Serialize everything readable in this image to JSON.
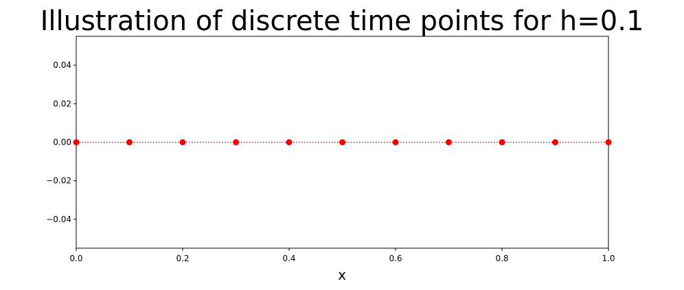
{
  "chart_data": {
    "type": "line",
    "title": "Illustration of discrete time points for h=0.1",
    "xlabel": "x",
    "ylabel": "",
    "xlim": [
      0.0,
      1.0
    ],
    "ylim": [
      -0.055,
      0.055
    ],
    "x_ticks": [
      0.0,
      0.2,
      0.4,
      0.6,
      0.8,
      1.0
    ],
    "x_tick_labels": [
      "0.0",
      "0.2",
      "0.4",
      "0.6",
      "0.8",
      "1.0"
    ],
    "y_ticks": [
      0.04,
      0.02,
      0.0,
      -0.02,
      -0.04
    ],
    "y_tick_labels": [
      "0.04",
      "0.02",
      "0.00",
      "−0.02",
      "−0.04"
    ],
    "grid": false,
    "legend": "none",
    "series": [
      {
        "x": [
          0.0,
          0.1,
          0.2,
          0.3,
          0.4,
          0.5,
          0.6,
          0.7,
          0.8,
          0.9,
          1.0
        ],
        "values": [
          0,
          0,
          0,
          0,
          0,
          0,
          0,
          0,
          0,
          0,
          0
        ],
        "line_style": "dotted",
        "marker": "circle",
        "color": "#ff0000"
      }
    ]
  }
}
